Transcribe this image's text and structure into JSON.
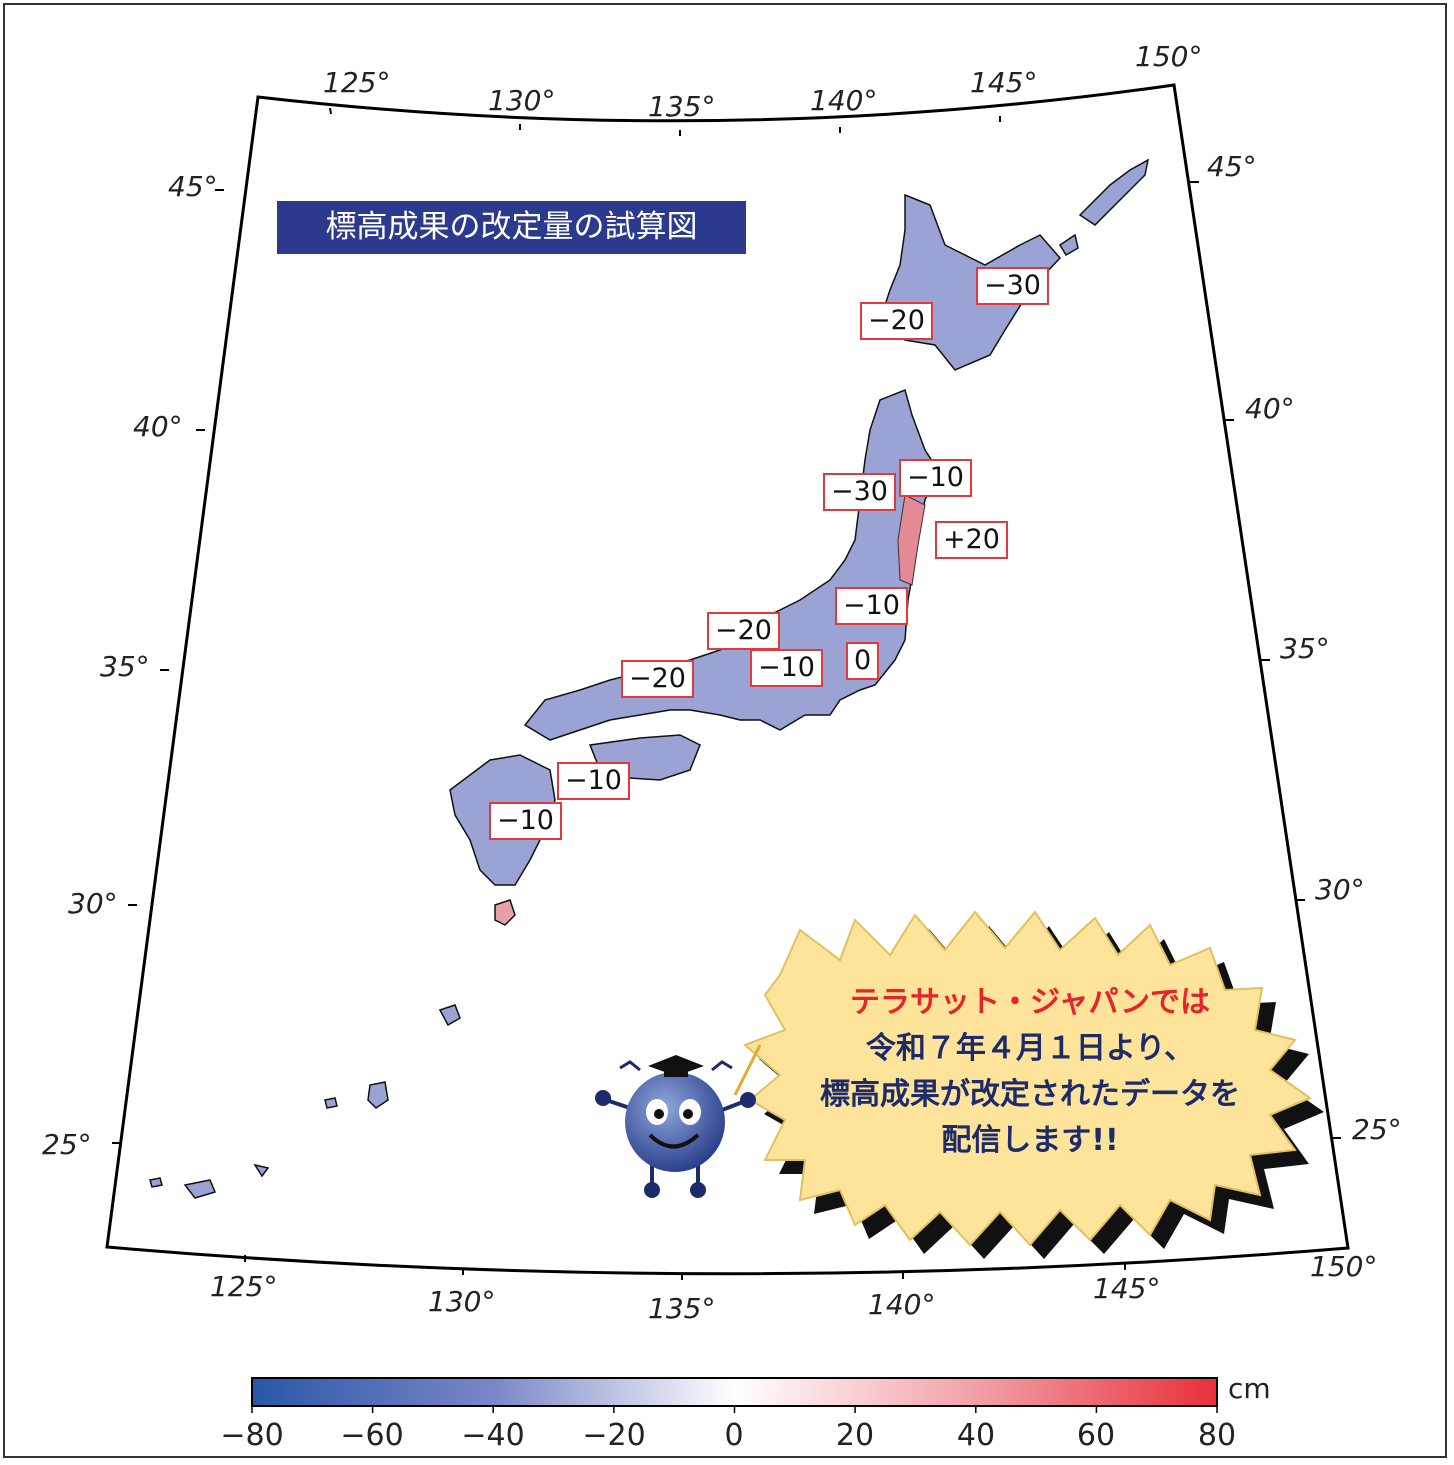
{
  "title": "標高成果の改定量の試算図",
  "top_longitude_ticks": [
    "125°",
    "130°",
    "135°",
    "140°",
    "145°",
    "150°"
  ],
  "bottom_longitude_ticks": [
    "125°",
    "130°",
    "135°",
    "140°",
    "145°",
    "150°"
  ],
  "left_latitude_ticks": [
    "45°",
    "40°",
    "35°",
    "30°",
    "25°"
  ],
  "right_latitude_ticks": [
    "45°",
    "40°",
    "35°",
    "30°",
    "25°"
  ],
  "region_labels": [
    "−30",
    "−20",
    "−30",
    "−10",
    "+20",
    "−10",
    "−20",
    "−20",
    "−10",
    "0",
    "−10",
    "−10"
  ],
  "announcement": {
    "line1": "テラサット・ジャパンでは",
    "line2": "令和７年４月１日より、",
    "line3": "標高成果が改定されたデータを",
    "line4": "配信します!!"
  },
  "colorbar": {
    "unit": "cm",
    "ticks": [
      "−80",
      "−60",
      "−40",
      "−20",
      "0",
      "20",
      "40",
      "60",
      "80"
    ],
    "min_color": "#2957a8",
    "mid_color": "#ffffff",
    "max_color": "#e8303a"
  },
  "colors": {
    "title_bg": "#2b3a8c",
    "label_border": "#e23a3a",
    "land_fill": "#9aa3d4",
    "bubble_fill": "#fde49a"
  }
}
